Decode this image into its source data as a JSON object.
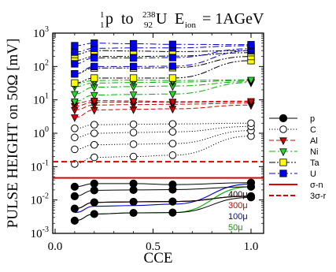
{
  "chart_data": {
    "type": "scatter",
    "title": {
      "p_sup": "1",
      "p_sub": "1",
      "p": "p",
      "to": "to",
      "u_sup": "238",
      "u_sub": "92",
      "u": "U",
      "e_main": "E",
      "e_sub": "ion",
      "e_val": " = 1AGeV"
    },
    "xlabel": "CCE",
    "ylabel": "PULSE HEIGHT on 50Ω [mV]",
    "xlim": [
      0,
      1.05
    ],
    "ylim": [
      0.001,
      1000
    ],
    "yscale": "log",
    "x_ticks": [
      "0.0",
      "0.5",
      "1.0"
    ],
    "x_tick_values": [
      0,
      0.5,
      1.0
    ],
    "y_ticks": [
      {
        "base": "10",
        "exp": "-3",
        "value": 0.001
      },
      {
        "base": "10",
        "exp": "-2",
        "value": 0.01
      },
      {
        "base": "10",
        "exp": "-1",
        "value": 0.1
      },
      {
        "base": "10",
        "exp": "0",
        "value": 1
      },
      {
        "base": "10",
        "exp": "1",
        "value": 10
      },
      {
        "base": "10",
        "exp": "2",
        "value": 100
      },
      {
        "base": "10",
        "exp": "3",
        "value": 1000
      }
    ],
    "x": [
      0.1,
      0.2,
      0.4,
      0.6,
      1.0
    ],
    "legend_position": "right",
    "series": [
      {
        "name": "p",
        "marker": "filled-circle",
        "color": "#000000",
        "dash": "solid",
        "groups": [
          [
            0.0024,
            0.0038,
            0.0041,
            0.0042,
            0.012
          ],
          [
            0.0055,
            0.0085,
            0.0088,
            0.009,
            0.013
          ],
          [
            0.013,
            0.0195,
            0.02,
            0.0205,
            0.025
          ],
          [
            0.025,
            0.031,
            0.031,
            0.029,
            0.033
          ]
        ]
      },
      {
        "name": "C",
        "marker": "open-circle",
        "color": "#000000",
        "dash": "dotted",
        "groups": [
          [
            0.12,
            0.19,
            0.2,
            0.22,
            0.82
          ],
          [
            0.33,
            0.45,
            0.47,
            0.49,
            1.2
          ],
          [
            0.75,
            1.0,
            1.05,
            1.1,
            1.6
          ],
          [
            1.4,
            1.8,
            1.85,
            1.9,
            2.0
          ]
        ]
      },
      {
        "name": "Al",
        "marker": "red-triangle-down",
        "color": "#cc0000",
        "dash": "dashed",
        "groups": [
          [
            3.0,
            5.0,
            5.2,
            5.4,
            7.0
          ],
          [
            5.0,
            7.0,
            7.2,
            7.4,
            8.0
          ],
          [
            6.5,
            8.5,
            8.6,
            8.5,
            8.8
          ],
          [
            8.0,
            9.5,
            9.3,
            8.8,
            9.2
          ]
        ]
      },
      {
        "name": "Ni",
        "marker": "green-triangle-down",
        "color": "#00b000",
        "dash": "dash-dot",
        "groups": [
          [
            9.0,
            14.0,
            14.5,
            15.0,
            33.0
          ],
          [
            15.0,
            24.0,
            25.0,
            26.0,
            35.0
          ],
          [
            25.0,
            32.0,
            33.0,
            34.0,
            38.0
          ],
          [
            30.0,
            38.0,
            39.0,
            38.0,
            40.0
          ]
        ]
      },
      {
        "name": "Ta",
        "marker": "yellow-square",
        "color": "#000000",
        "dash": "dash-dot-dot",
        "groups": [
          [
            32.0,
            45.0,
            45.0,
            45.0,
            150.0
          ],
          [
            60.0,
            90.0,
            90.0,
            92.0,
            200.0
          ],
          [
            150.0,
            200.0,
            200.0,
            205.0,
            260.0
          ],
          [
            230.0,
            300.0,
            290.0,
            280.0,
            300.0
          ]
        ]
      },
      {
        "name": "U",
        "marker": "blue-square",
        "color": "#0000cc",
        "dash": "dash-dot",
        "groups": [
          [
            60.0,
            100.0,
            100.0,
            102.0,
            300.0
          ],
          [
            120.0,
            180.0,
            180.0,
            185.0,
            340.0
          ],
          [
            270.0,
            350.0,
            360.0,
            360.0,
            420.0
          ],
          [
            420.0,
            500.0,
            480.0,
            460.0,
            450.0
          ]
        ]
      }
    ],
    "curves": [
      {
        "label": "400μ",
        "color": "#000000",
        "values": [
          0.0055,
          0.0085,
          0.0088,
          0.009,
          0.013
        ]
      },
      {
        "label": "300μ",
        "color": "#cc0000",
        "values": [
          0.0055,
          0.0085,
          0.0088,
          0.009,
          0.013
        ]
      },
      {
        "label": "100μ",
        "color": "#0000cc",
        "values": [
          0.0042,
          0.0065,
          0.0068,
          0.0075,
          0.03
        ]
      },
      {
        "label": "50μ",
        "color": "#00b000",
        "values": [
          0.0024,
          0.0038,
          0.0041,
          0.0042,
          0.025
        ]
      }
    ],
    "thresholds": [
      {
        "name": "σ-n",
        "value": 0.046,
        "color": "#dd0000",
        "dash": "solid"
      },
      {
        "name": "3σ-r",
        "value": 0.14,
        "color": "#dd0000",
        "dash": "dashed"
      }
    ],
    "curve_labels": [
      {
        "text": "400μ",
        "color": "#000000"
      },
      {
        "text": "300μ",
        "color": "#cc0000"
      },
      {
        "text": "100μ",
        "color": "#0000cc"
      },
      {
        "text": "50μ",
        "color": "#00a000"
      }
    ]
  }
}
